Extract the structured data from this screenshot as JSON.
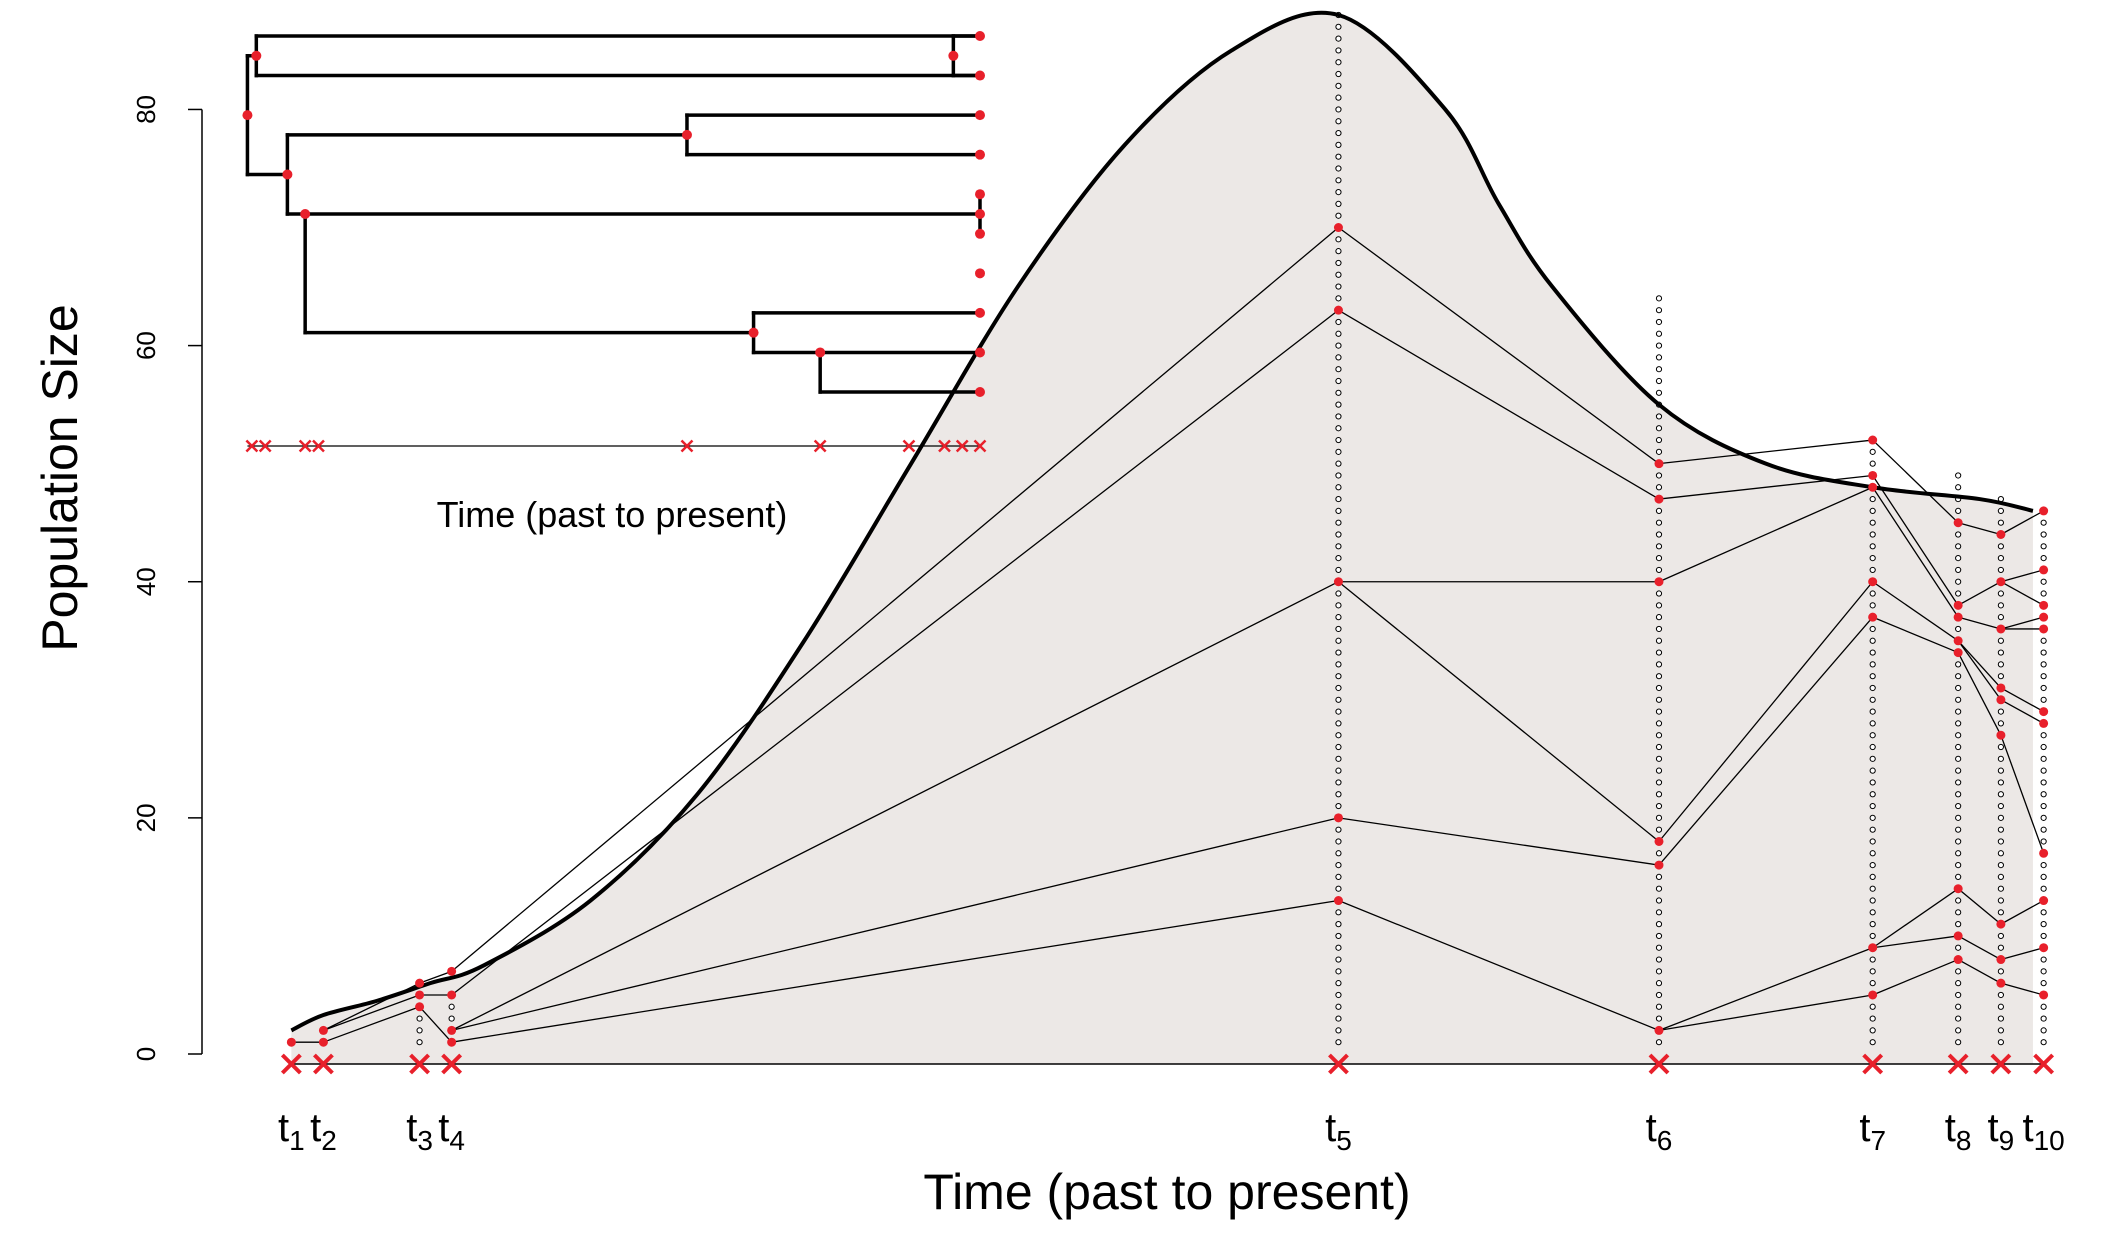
{
  "chart_data": [
    {
      "type": "line",
      "title": "",
      "xlabel": "Time (past to present)",
      "ylabel": "Population Size",
      "ylim": [
        0,
        88
      ],
      "yticks": [
        0,
        20,
        40,
        60,
        80
      ],
      "ytick_labels": [
        "0",
        "20",
        "40",
        "60",
        "80"
      ],
      "grid": false,
      "colors": {
        "curve": "#000000",
        "fill": "#ece8e6",
        "point": "#e8202b",
        "line": "#000000"
      },
      "population_curve": {
        "x": [
          0.2,
          0.5,
          1.0,
          1.5,
          2,
          3,
          4,
          5,
          6,
          7,
          8,
          9,
          10,
          11,
          11.5,
          12,
          13,
          14,
          15,
          16,
          16.5
        ],
        "y": [
          2,
          3.3,
          4.5,
          6,
          7.5,
          13,
          22,
          35,
          50,
          65,
          77,
          85,
          88,
          80,
          72,
          65,
          55,
          50,
          48,
          47,
          46
        ]
      },
      "sampling_times": [
        {
          "label": "t",
          "sub": "1",
          "x": 0.2,
          "n": 1,
          "points": [
            1
          ]
        },
        {
          "label": "t",
          "sub": "2",
          "x": 0.5,
          "n": 2,
          "points": [
            1,
            2
          ]
        },
        {
          "label": "t",
          "sub": "3",
          "x": 1.4,
          "n": 4,
          "points": [
            4,
            5,
            6
          ]
        },
        {
          "label": "t",
          "sub": "4",
          "x": 1.7,
          "n": 5,
          "points": [
            1,
            2,
            5,
            7
          ]
        },
        {
          "label": "t",
          "sub": "5",
          "x": 10.0,
          "n": 88,
          "points": [
            13,
            20,
            40,
            63,
            70
          ]
        },
        {
          "label": "t",
          "sub": "6",
          "x": 13.0,
          "n": 64,
          "points": [
            2,
            16,
            18,
            40,
            47,
            50
          ]
        },
        {
          "label": "t",
          "sub": "7",
          "x": 15.0,
          "n": 52,
          "points": [
            5,
            9,
            37,
            40,
            48,
            49,
            52
          ]
        },
        {
          "label": "t",
          "sub": "8",
          "x": 15.8,
          "n": 49,
          "points": [
            8,
            10,
            14,
            34,
            35,
            37,
            38,
            45
          ]
        },
        {
          "label": "t",
          "sub": "9",
          "x": 16.2,
          "n": 47,
          "points": [
            6,
            8,
            11,
            27,
            30,
            31,
            36,
            40,
            44
          ]
        },
        {
          "label": "t",
          "sub": "10",
          "x": 16.6,
          "n": 46,
          "points": [
            5,
            9,
            13,
            17,
            28,
            29,
            36,
            37,
            38,
            41,
            46
          ]
        }
      ],
      "lineage_edges": [
        [
          [
            0.2,
            1
          ],
          [
            0.5,
            1
          ]
        ],
        [
          [
            0.5,
            1
          ],
          [
            1.4,
            4
          ]
        ],
        [
          [
            0.5,
            2
          ],
          [
            1.4,
            5
          ]
        ],
        [
          [
            0.5,
            2
          ],
          [
            1.4,
            6
          ]
        ],
        [
          [
            1.4,
            4
          ],
          [
            1.7,
            1
          ]
        ],
        [
          [
            1.4,
            5
          ],
          [
            1.7,
            5
          ]
        ],
        [
          [
            1.4,
            6
          ],
          [
            1.7,
            7
          ]
        ],
        [
          [
            1.7,
            1
          ],
          [
            10.0,
            13
          ]
        ],
        [
          [
            1.7,
            2
          ],
          [
            10.0,
            20
          ]
        ],
        [
          [
            1.7,
            2
          ],
          [
            10.0,
            40
          ]
        ],
        [
          [
            1.7,
            5
          ],
          [
            10.0,
            63
          ]
        ],
        [
          [
            1.7,
            7
          ],
          [
            10.0,
            70
          ]
        ],
        [
          [
            10.0,
            13
          ],
          [
            13.0,
            2
          ]
        ],
        [
          [
            10.0,
            20
          ],
          [
            13.0,
            16
          ]
        ],
        [
          [
            10.0,
            40
          ],
          [
            13.0,
            40
          ]
        ],
        [
          [
            10.0,
            40
          ],
          [
            13.0,
            18
          ]
        ],
        [
          [
            10.0,
            63
          ],
          [
            13.0,
            47
          ]
        ],
        [
          [
            10.0,
            70
          ],
          [
            13.0,
            50
          ]
        ],
        [
          [
            13.0,
            2
          ],
          [
            15.0,
            5
          ]
        ],
        [
          [
            13.0,
            2
          ],
          [
            15.0,
            9
          ]
        ],
        [
          [
            13.0,
            16
          ],
          [
            15.0,
            37
          ]
        ],
        [
          [
            13.0,
            18
          ],
          [
            15.0,
            40
          ]
        ],
        [
          [
            13.0,
            40
          ],
          [
            15.0,
            48
          ]
        ],
        [
          [
            13.0,
            47
          ],
          [
            15.0,
            49
          ]
        ],
        [
          [
            13.0,
            50
          ],
          [
            15.0,
            52
          ]
        ],
        [
          [
            15.0,
            5
          ],
          [
            15.8,
            8
          ]
        ],
        [
          [
            15.0,
            9
          ],
          [
            15.8,
            10
          ]
        ],
        [
          [
            15.0,
            9
          ],
          [
            15.8,
            14
          ]
        ],
        [
          [
            15.0,
            37
          ],
          [
            15.8,
            34
          ]
        ],
        [
          [
            15.0,
            40
          ],
          [
            15.8,
            35
          ]
        ],
        [
          [
            15.0,
            48
          ],
          [
            15.8,
            37
          ]
        ],
        [
          [
            15.0,
            49
          ],
          [
            15.8,
            38
          ]
        ],
        [
          [
            15.0,
            52
          ],
          [
            15.8,
            45
          ]
        ],
        [
          [
            15.8,
            8
          ],
          [
            16.2,
            6
          ]
        ],
        [
          [
            15.8,
            10
          ],
          [
            16.2,
            8
          ]
        ],
        [
          [
            15.8,
            14
          ],
          [
            16.2,
            11
          ]
        ],
        [
          [
            15.8,
            34
          ],
          [
            16.2,
            27
          ]
        ],
        [
          [
            15.8,
            35
          ],
          [
            16.2,
            30
          ]
        ],
        [
          [
            15.8,
            35
          ],
          [
            16.2,
            31
          ]
        ],
        [
          [
            15.8,
            37
          ],
          [
            16.2,
            36
          ]
        ],
        [
          [
            15.8,
            38
          ],
          [
            16.2,
            40
          ]
        ],
        [
          [
            15.8,
            45
          ],
          [
            16.2,
            44
          ]
        ],
        [
          [
            16.2,
            6
          ],
          [
            16.6,
            5
          ]
        ],
        [
          [
            16.2,
            8
          ],
          [
            16.6,
            9
          ]
        ],
        [
          [
            16.2,
            11
          ],
          [
            16.6,
            13
          ]
        ],
        [
          [
            16.2,
            27
          ],
          [
            16.6,
            17
          ]
        ],
        [
          [
            16.2,
            30
          ],
          [
            16.6,
            28
          ]
        ],
        [
          [
            16.2,
            31
          ],
          [
            16.6,
            29
          ]
        ],
        [
          [
            16.2,
            36
          ],
          [
            16.6,
            36
          ]
        ],
        [
          [
            16.2,
            36
          ],
          [
            16.6,
            37
          ]
        ],
        [
          [
            16.2,
            40
          ],
          [
            16.6,
            38
          ]
        ],
        [
          [
            16.2,
            40
          ],
          [
            16.6,
            41
          ]
        ],
        [
          [
            16.2,
            44
          ],
          [
            16.6,
            46
          ]
        ]
      ]
    },
    {
      "type": "tree",
      "xlabel": "Time (past to present)",
      "tips": 10,
      "sampling_x": [
        0.2,
        0.5,
        1.4,
        1.7,
        10.0,
        13.0,
        15.0,
        15.8,
        16.2,
        16.6
      ],
      "nodes": [
        {
          "x": 0.1,
          "ymid": 3.0,
          "children": [
            1.5,
            4.5
          ]
        },
        {
          "x": 0.3,
          "ymid": 1.5,
          "children": [
            1,
            2
          ]
        },
        {
          "x": 16.0,
          "ymid": 1.5,
          "children": [
            1,
            2
          ]
        },
        {
          "x": 1.0,
          "ymid": 4.5,
          "children": [
            3.5,
            5.5
          ]
        },
        {
          "x": 10.0,
          "ymid": 3.5,
          "children": [
            3,
            4
          ]
        },
        {
          "x": 1.4,
          "ymid": 5.5,
          "children": [
            5.5,
            8.5
          ]
        },
        {
          "x": 16.6,
          "ymid": 5.5,
          "children": [
            5,
            6
          ]
        },
        {
          "x": 11.5,
          "ymid": 8.5,
          "children": [
            8,
            9
          ]
        },
        {
          "x": 13.0,
          "ymid": 9.0,
          "children": [
            9,
            10
          ]
        }
      ]
    }
  ]
}
